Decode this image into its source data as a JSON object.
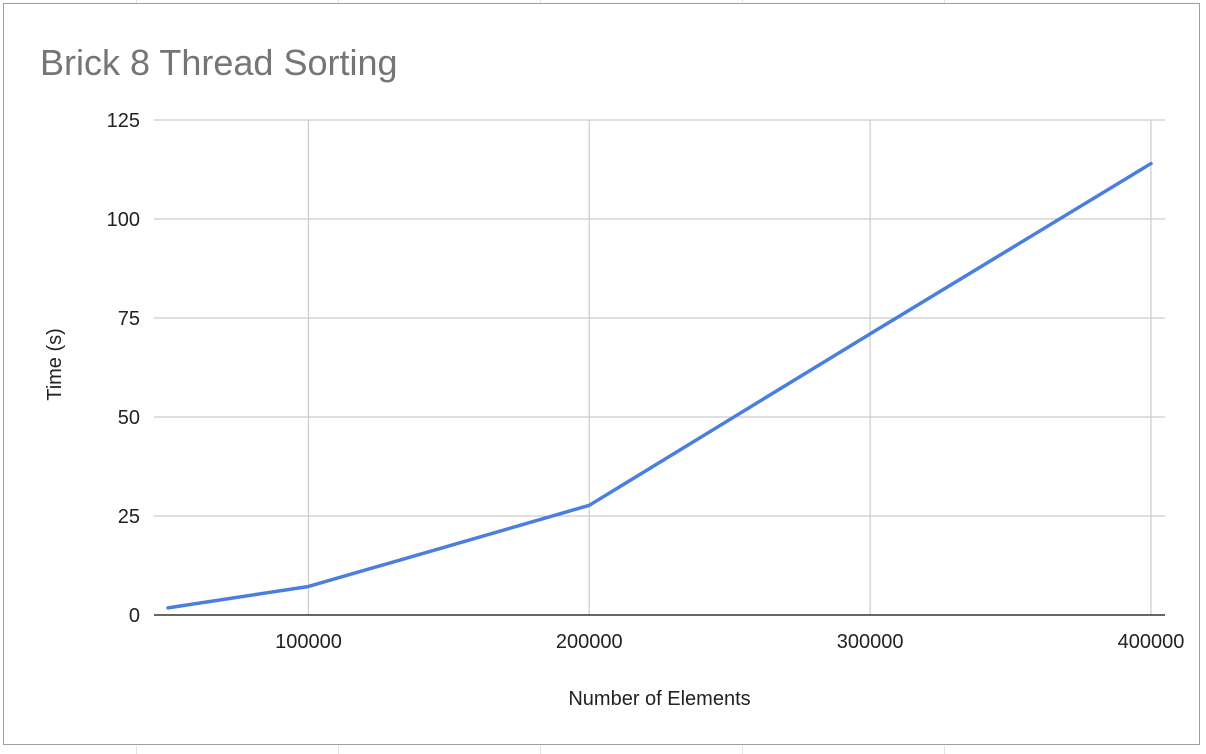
{
  "chart_data": {
    "type": "line",
    "title": "Brick 8 Thread Sorting",
    "xlabel": "Number of Elements",
    "ylabel": "Time (s)",
    "x": [
      50000,
      100000,
      200000,
      300000,
      400000
    ],
    "series": [
      {
        "values": [
          1.8,
          7.2,
          27.7,
          71.0,
          114.0
        ],
        "color": "#4a7fe0"
      }
    ],
    "xlim": [
      45000,
      405000
    ],
    "ylim": [
      0,
      125
    ],
    "x_ticks": [
      "100000",
      "200000",
      "300000",
      "400000"
    ],
    "x_tick_values": [
      100000,
      200000,
      300000,
      400000
    ],
    "y_ticks": [
      "0",
      "25",
      "50",
      "75",
      "100",
      "125"
    ],
    "y_tick_values": [
      0,
      25,
      50,
      75,
      100,
      125
    ],
    "grid": true,
    "legend": "none",
    "colors": {
      "line": "#4a7fe0",
      "grid": "#cccccc",
      "axis": "#333333",
      "title": "#757575",
      "frame": "#9e9e9e"
    }
  }
}
